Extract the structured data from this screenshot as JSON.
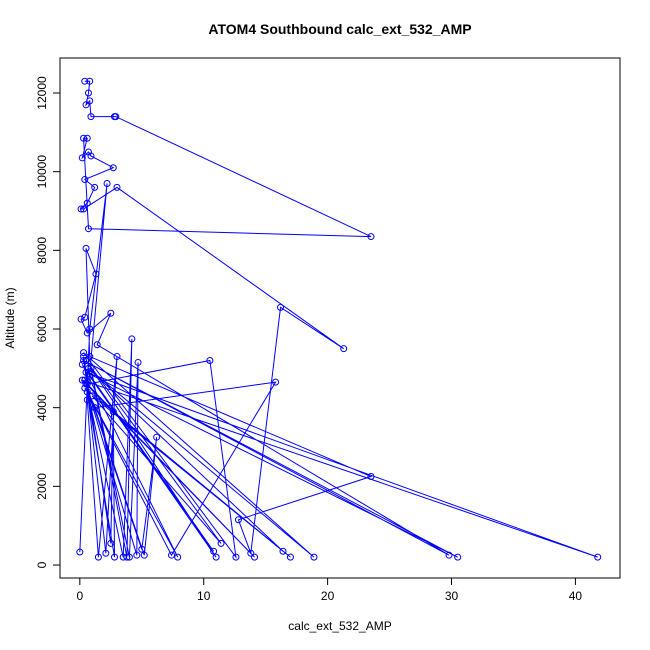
{
  "chart_data": {
    "type": "line",
    "markers": true,
    "color": "#0000ff",
    "title": "ATOM4 Southbound calc_ext_532_AMP",
    "x_label": "calc_ext_532_AMP",
    "y_label": "Altitude (m)",
    "xlim": [
      -1.6,
      43.6
    ],
    "ylim": [
      -330,
      12890
    ],
    "xticks": [
      0,
      10,
      20,
      30,
      40
    ],
    "yticks": [
      0,
      2000,
      4000,
      6000,
      8000,
      10000,
      12000
    ],
    "x": [
      0.4,
      0.8,
      0.7,
      0.5,
      0.8,
      0.9,
      2.8,
      2.9,
      23.5,
      0.7,
      0.3,
      0.6,
      0.2,
      0.7,
      0.9,
      2.7,
      0.4,
      1.2,
      0.6,
      0.1,
      0.3,
      3.0,
      21.3,
      16.2,
      13.8,
      12.8,
      23.5,
      0.8,
      0.5,
      1.3,
      0.4,
      0.1,
      0.6,
      2.5,
      1.4,
      29.8,
      0.3,
      30.5,
      0.5,
      41.8,
      0.2,
      14.1,
      0.6,
      10.5,
      12.6,
      0.3,
      18.9,
      0.7,
      16.4,
      0.4,
      17.0,
      1.0,
      11.4,
      0.5,
      11.0,
      0.8,
      10.8,
      0.2,
      7.9,
      0.6,
      7.4,
      15.8,
      1.2,
      5.2,
      6.2,
      5.0,
      0.4,
      4.6,
      4.7,
      4.0,
      0.9,
      3.8,
      4.2,
      3.5,
      0.5,
      2.8,
      2.7,
      2.5,
      0.3,
      2.1,
      3.0,
      1.5,
      0.6,
      2.2,
      0.8,
      0.0
    ],
    "values": [
      12300,
      12300,
      12000,
      11700,
      11800,
      11400,
      11400,
      11400,
      8350,
      8550,
      10850,
      10850,
      10350,
      10500,
      10400,
      10100,
      9800,
      9600,
      9200,
      9050,
      9050,
      9600,
      5500,
      6550,
      300,
      1150,
      2250,
      5300,
      8050,
      7400,
      6300,
      6250,
      5900,
      6400,
      5600,
      250,
      5200,
      200,
      4900,
      200,
      4700,
      200,
      4600,
      5200,
      200,
      5400,
      200,
      5000,
      350,
      4500,
      200,
      4300,
      550,
      5200,
      200,
      4800,
      350,
      5100,
      200,
      4400,
      250,
      4650,
      4000,
      250,
      3250,
      400,
      4700,
      250,
      5150,
      200,
      5000,
      200,
      5750,
      200,
      4600,
      200,
      3900,
      550,
      5300,
      300,
      5300,
      200,
      4200,
      9700,
      6000,
      330
    ]
  }
}
